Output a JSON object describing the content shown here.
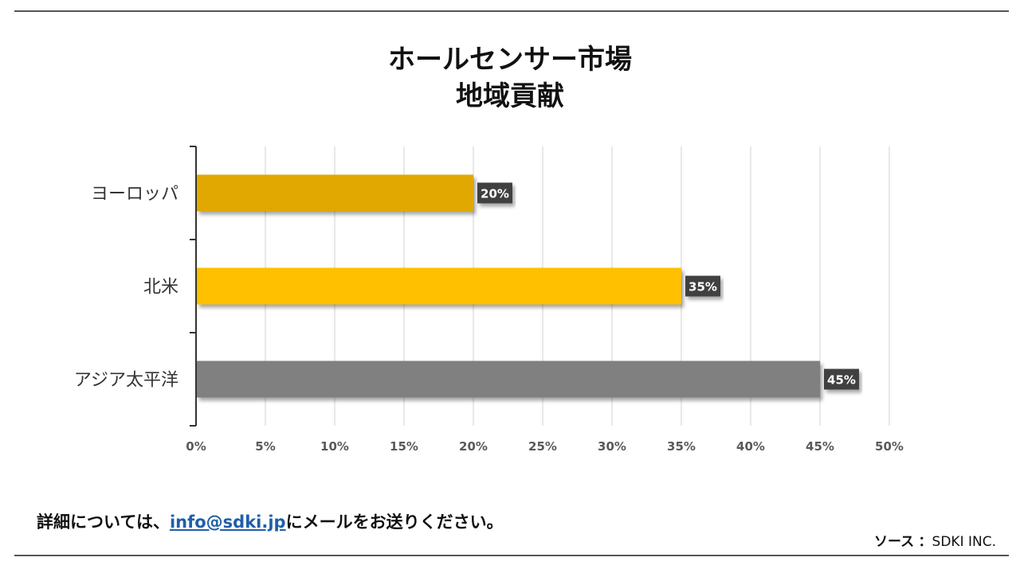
{
  "chart_data": {
    "type": "bar",
    "orientation": "horizontal",
    "title": "ホールセンサー市場",
    "subtitle": "地域貢献",
    "categories": [
      "ヨーロッパ",
      "北米",
      "アジア太平洋"
    ],
    "values": [
      20,
      35,
      45
    ],
    "value_labels": [
      "20%",
      "35%",
      "45%"
    ],
    "bar_colors": [
      "#E0A800",
      "#FFC000",
      "#808080"
    ],
    "xlim": [
      0,
      50
    ],
    "x_ticks": [
      "0%",
      "5%",
      "10%",
      "15%",
      "20%",
      "25%",
      "30%",
      "35%",
      "40%",
      "45%",
      "50%"
    ],
    "grid": true,
    "legend": "none"
  },
  "footer": {
    "note_prefix": "詳細については、",
    "email": "info@sdki.jp",
    "note_suffix": "にメールをお送りください。",
    "source_label": "ソース",
    "source_sep": "：",
    "source_value": "SDKI INC."
  }
}
